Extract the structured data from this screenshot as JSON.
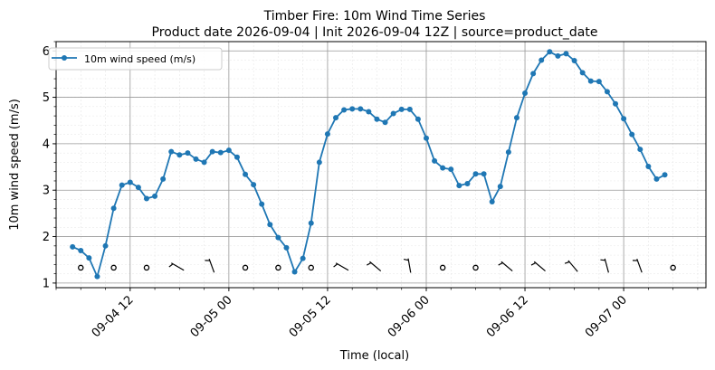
{
  "chart_data": {
    "type": "line",
    "title": "Timber Fire: 10m Wind Time Series",
    "subtitle": "Product date 2026-09-04 | Init 2026-09-04 12Z | source=product_date",
    "xlabel": "Time (local)",
    "ylabel": "10m wind speed (m/s)",
    "xlim": [
      "2026-09-04 03:00",
      "2026-09-07 10:00"
    ],
    "ylim": [
      0.9,
      6.2
    ],
    "grid": true,
    "legend_position": "top-left",
    "x_ticks": [
      {
        "t": "2026-09-04 12:00",
        "label": "09-04 12"
      },
      {
        "t": "2026-09-05 00:00",
        "label": "09-05 00"
      },
      {
        "t": "2026-09-05 12:00",
        "label": "09-05 12"
      },
      {
        "t": "2026-09-06 00:00",
        "label": "09-06 00"
      },
      {
        "t": "2026-09-06 12:00",
        "label": "09-06 12"
      },
      {
        "t": "2026-09-07 00:00",
        "label": "09-07 00"
      }
    ],
    "y_ticks": [
      1,
      2,
      3,
      4,
      5,
      6
    ],
    "start_time": "2026-09-04 05:00",
    "step_hours": 1,
    "series": [
      {
        "name": "10m wind speed (m/s)",
        "color": "#1f77b4",
        "marker": "circle",
        "values": [
          1.78,
          1.7,
          1.54,
          1.14,
          1.8,
          2.61,
          3.11,
          3.17,
          3.06,
          2.82,
          2.87,
          3.24,
          3.83,
          3.76,
          3.8,
          3.67,
          3.6,
          3.83,
          3.81,
          3.86,
          3.71,
          3.34,
          3.12,
          2.7,
          2.26,
          1.98,
          1.76,
          1.24,
          1.53,
          2.29,
          3.6,
          4.21,
          4.56,
          4.73,
          4.75,
          4.75,
          4.69,
          4.53,
          4.46,
          4.65,
          4.74,
          4.74,
          4.53,
          4.12,
          3.63,
          3.48,
          3.45,
          3.1,
          3.14,
          3.35,
          3.35,
          2.75,
          3.08,
          3.82,
          4.56,
          5.09,
          5.51,
          5.8,
          5.98,
          5.89,
          5.94,
          5.79,
          5.53,
          5.35,
          5.34,
          5.12,
          4.86,
          4.54,
          4.2,
          3.88,
          3.51,
          3.24,
          3.33
        ]
      }
    ],
    "wind_barbs": [
      {
        "t": "2026-09-04 06:00",
        "speed": 1.7,
        "dir": null
      },
      {
        "t": "2026-09-04 10:00",
        "speed": 1.8,
        "dir": null
      },
      {
        "t": "2026-09-04 14:00",
        "speed": 3.1,
        "dir": null
      },
      {
        "t": "2026-09-04 18:00",
        "speed": 3.8,
        "dir": 300
      },
      {
        "t": "2026-09-04 22:00",
        "speed": 3.6,
        "dir": 340
      },
      {
        "t": "2026-09-05 02:00",
        "speed": 3.7,
        "dir": null
      },
      {
        "t": "2026-09-05 06:00",
        "speed": 2.3,
        "dir": null
      },
      {
        "t": "2026-09-05 10:00",
        "speed": 1.5,
        "dir": null
      },
      {
        "t": "2026-09-05 14:00",
        "speed": 4.6,
        "dir": 300
      },
      {
        "t": "2026-09-05 18:00",
        "speed": 4.7,
        "dir": 310
      },
      {
        "t": "2026-09-05 22:00",
        "speed": 4.7,
        "dir": 350
      },
      {
        "t": "2026-09-06 02:00",
        "speed": 3.6,
        "dir": null
      },
      {
        "t": "2026-09-06 06:00",
        "speed": 3.1,
        "dir": null
      },
      {
        "t": "2026-09-06 10:00",
        "speed": 3.1,
        "dir": 310
      },
      {
        "t": "2026-09-06 14:00",
        "speed": 5.5,
        "dir": 310
      },
      {
        "t": "2026-09-06 18:00",
        "speed": 5.9,
        "dir": 320
      },
      {
        "t": "2026-09-06 22:00",
        "speed": 5.3,
        "dir": 345
      },
      {
        "t": "2026-09-07 02:00",
        "speed": 4.2,
        "dir": 340
      },
      {
        "t": "2026-09-07 06:00",
        "speed": 3.3,
        "dir": null
      }
    ]
  }
}
